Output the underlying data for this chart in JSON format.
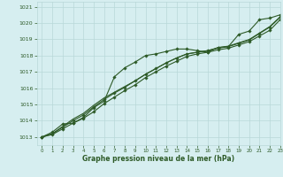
{
  "xlabel": "Graphe pression niveau de la mer (hPa)",
  "bg_color": "#d6eef0",
  "grid_color": "#b8d8d8",
  "line_color": "#2d5a27",
  "xlim": [
    -0.5,
    23
  ],
  "ylim": [
    1012.5,
    1021.3
  ],
  "yticks": [
    1013,
    1014,
    1015,
    1016,
    1017,
    1018,
    1019,
    1020,
    1021
  ],
  "xticks": [
    0,
    1,
    2,
    3,
    4,
    5,
    6,
    7,
    8,
    9,
    10,
    11,
    12,
    13,
    14,
    15,
    16,
    17,
    18,
    19,
    20,
    21,
    22,
    23
  ],
  "lines": [
    [
      1013.0,
      1013.3,
      1013.8,
      1013.85,
      1014.2,
      1014.8,
      1015.2,
      1016.7,
      1017.25,
      1017.6,
      1018.0,
      1018.1,
      1018.25,
      1018.4,
      1018.4,
      1018.3,
      1018.2,
      1018.5,
      1018.55,
      1019.3,
      1019.5,
      1020.2,
      1020.3,
      1020.5
    ],
    [
      1013.0,
      1013.15,
      1013.5,
      1013.85,
      1014.15,
      1014.55,
      1015.05,
      1015.45,
      1015.85,
      1016.2,
      1016.65,
      1017.0,
      1017.35,
      1017.65,
      1017.95,
      1018.1,
      1018.2,
      1018.35,
      1018.45,
      1018.65,
      1018.85,
      1019.2,
      1019.55,
      1020.2
    ],
    [
      1013.0,
      1013.2,
      1013.6,
      1014.0,
      1014.35,
      1014.85,
      1015.3,
      1015.7,
      1016.05,
      1016.45,
      1016.85,
      1017.2,
      1017.55,
      1017.85,
      1018.1,
      1018.2,
      1018.3,
      1018.45,
      1018.55,
      1018.75,
      1018.95,
      1019.35,
      1019.75,
      1020.35
    ],
    [
      1013.0,
      1013.2,
      1013.65,
      1014.1,
      1014.45,
      1014.95,
      1015.4,
      1015.75,
      1016.1,
      1016.45,
      1016.85,
      1017.2,
      1017.55,
      1017.85,
      1018.1,
      1018.2,
      1018.3,
      1018.48,
      1018.58,
      1018.78,
      1018.98,
      1019.38,
      1019.78,
      1020.38
    ]
  ],
  "markers": [
    true,
    true,
    true,
    false
  ]
}
